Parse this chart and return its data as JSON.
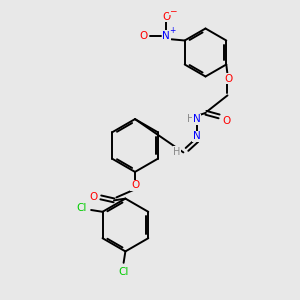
{
  "background_color": "#e8e8e8",
  "bond_color": "#000000",
  "atom_colors": {
    "O": "#ff0000",
    "N": "#0000ff",
    "Cl": "#00cc00",
    "H": "#888888",
    "C": "#000000"
  },
  "figsize": [
    3.0,
    3.0
  ],
  "dpi": 100,
  "xlim": [
    0,
    10
  ],
  "ylim": [
    0,
    10
  ],
  "lw": 1.4,
  "fontsize": 7.0
}
